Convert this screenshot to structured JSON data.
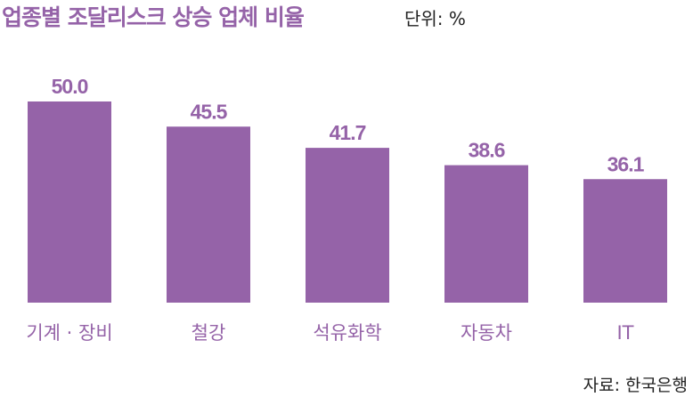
{
  "chart_data": {
    "type": "bar",
    "title": "업종별 조달리스크 상승 업체 비율",
    "unit": "단위: %",
    "source": "자료: 한국은행",
    "categories": [
      "기계 · 장비",
      "철강",
      "석유화학",
      "자동차",
      "IT"
    ],
    "values": [
      50.0,
      45.5,
      41.7,
      38.6,
      36.1
    ],
    "value_labels": [
      "50.0",
      "45.5",
      "41.7",
      "38.6",
      "36.1"
    ],
    "ylim": [
      14,
      50
    ],
    "grid": false,
    "bar_color": "#9563a8",
    "label_color": "#9563a8"
  }
}
